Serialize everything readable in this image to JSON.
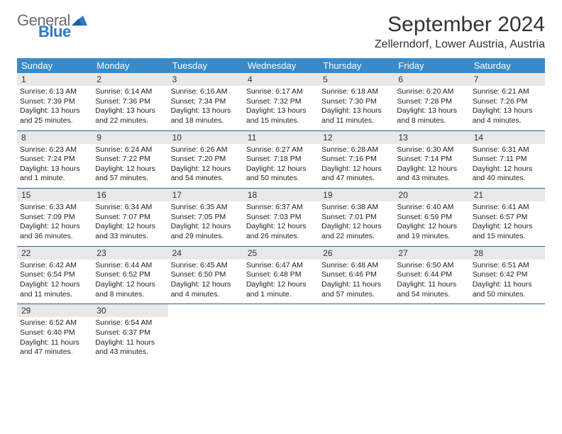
{
  "logo": {
    "text1": "General",
    "text2": "Blue"
  },
  "title": "September 2024",
  "location": "Zellerndorf, Lower Austria, Austria",
  "colors": {
    "header_bg": "#3a8ac8",
    "header_text": "#ffffff",
    "daynum_bg": "#e8e8e8",
    "week_border": "#2f5f8a",
    "logo_gray": "#6b6b6b",
    "logo_blue": "#2f78c2",
    "page_bg": "#ffffff",
    "text": "#222222"
  },
  "weekdays": [
    "Sunday",
    "Monday",
    "Tuesday",
    "Wednesday",
    "Thursday",
    "Friday",
    "Saturday"
  ],
  "layout": {
    "columns": 7,
    "rows": 5
  },
  "days": [
    {
      "n": "1",
      "sunrise": "Sunrise: 6:13 AM",
      "sunset": "Sunset: 7:39 PM",
      "day1": "Daylight: 13 hours",
      "day2": "and 25 minutes."
    },
    {
      "n": "2",
      "sunrise": "Sunrise: 6:14 AM",
      "sunset": "Sunset: 7:36 PM",
      "day1": "Daylight: 13 hours",
      "day2": "and 22 minutes."
    },
    {
      "n": "3",
      "sunrise": "Sunrise: 6:16 AM",
      "sunset": "Sunset: 7:34 PM",
      "day1": "Daylight: 13 hours",
      "day2": "and 18 minutes."
    },
    {
      "n": "4",
      "sunrise": "Sunrise: 6:17 AM",
      "sunset": "Sunset: 7:32 PM",
      "day1": "Daylight: 13 hours",
      "day2": "and 15 minutes."
    },
    {
      "n": "5",
      "sunrise": "Sunrise: 6:18 AM",
      "sunset": "Sunset: 7:30 PM",
      "day1": "Daylight: 13 hours",
      "day2": "and 11 minutes."
    },
    {
      "n": "6",
      "sunrise": "Sunrise: 6:20 AM",
      "sunset": "Sunset: 7:28 PM",
      "day1": "Daylight: 13 hours",
      "day2": "and 8 minutes."
    },
    {
      "n": "7",
      "sunrise": "Sunrise: 6:21 AM",
      "sunset": "Sunset: 7:26 PM",
      "day1": "Daylight: 13 hours",
      "day2": "and 4 minutes."
    },
    {
      "n": "8",
      "sunrise": "Sunrise: 6:23 AM",
      "sunset": "Sunset: 7:24 PM",
      "day1": "Daylight: 13 hours",
      "day2": "and 1 minute."
    },
    {
      "n": "9",
      "sunrise": "Sunrise: 6:24 AM",
      "sunset": "Sunset: 7:22 PM",
      "day1": "Daylight: 12 hours",
      "day2": "and 57 minutes."
    },
    {
      "n": "10",
      "sunrise": "Sunrise: 6:26 AM",
      "sunset": "Sunset: 7:20 PM",
      "day1": "Daylight: 12 hours",
      "day2": "and 54 minutes."
    },
    {
      "n": "11",
      "sunrise": "Sunrise: 6:27 AM",
      "sunset": "Sunset: 7:18 PM",
      "day1": "Daylight: 12 hours",
      "day2": "and 50 minutes."
    },
    {
      "n": "12",
      "sunrise": "Sunrise: 6:28 AM",
      "sunset": "Sunset: 7:16 PM",
      "day1": "Daylight: 12 hours",
      "day2": "and 47 minutes."
    },
    {
      "n": "13",
      "sunrise": "Sunrise: 6:30 AM",
      "sunset": "Sunset: 7:14 PM",
      "day1": "Daylight: 12 hours",
      "day2": "and 43 minutes."
    },
    {
      "n": "14",
      "sunrise": "Sunrise: 6:31 AM",
      "sunset": "Sunset: 7:11 PM",
      "day1": "Daylight: 12 hours",
      "day2": "and 40 minutes."
    },
    {
      "n": "15",
      "sunrise": "Sunrise: 6:33 AM",
      "sunset": "Sunset: 7:09 PM",
      "day1": "Daylight: 12 hours",
      "day2": "and 36 minutes."
    },
    {
      "n": "16",
      "sunrise": "Sunrise: 6:34 AM",
      "sunset": "Sunset: 7:07 PM",
      "day1": "Daylight: 12 hours",
      "day2": "and 33 minutes."
    },
    {
      "n": "17",
      "sunrise": "Sunrise: 6:35 AM",
      "sunset": "Sunset: 7:05 PM",
      "day1": "Daylight: 12 hours",
      "day2": "and 29 minutes."
    },
    {
      "n": "18",
      "sunrise": "Sunrise: 6:37 AM",
      "sunset": "Sunset: 7:03 PM",
      "day1": "Daylight: 12 hours",
      "day2": "and 26 minutes."
    },
    {
      "n": "19",
      "sunrise": "Sunrise: 6:38 AM",
      "sunset": "Sunset: 7:01 PM",
      "day1": "Daylight: 12 hours",
      "day2": "and 22 minutes."
    },
    {
      "n": "20",
      "sunrise": "Sunrise: 6:40 AM",
      "sunset": "Sunset: 6:59 PM",
      "day1": "Daylight: 12 hours",
      "day2": "and 19 minutes."
    },
    {
      "n": "21",
      "sunrise": "Sunrise: 6:41 AM",
      "sunset": "Sunset: 6:57 PM",
      "day1": "Daylight: 12 hours",
      "day2": "and 15 minutes."
    },
    {
      "n": "22",
      "sunrise": "Sunrise: 6:42 AM",
      "sunset": "Sunset: 6:54 PM",
      "day1": "Daylight: 12 hours",
      "day2": "and 11 minutes."
    },
    {
      "n": "23",
      "sunrise": "Sunrise: 6:44 AM",
      "sunset": "Sunset: 6:52 PM",
      "day1": "Daylight: 12 hours",
      "day2": "and 8 minutes."
    },
    {
      "n": "24",
      "sunrise": "Sunrise: 6:45 AM",
      "sunset": "Sunset: 6:50 PM",
      "day1": "Daylight: 12 hours",
      "day2": "and 4 minutes."
    },
    {
      "n": "25",
      "sunrise": "Sunrise: 6:47 AM",
      "sunset": "Sunset: 6:48 PM",
      "day1": "Daylight: 12 hours",
      "day2": "and 1 minute."
    },
    {
      "n": "26",
      "sunrise": "Sunrise: 6:48 AM",
      "sunset": "Sunset: 6:46 PM",
      "day1": "Daylight: 11 hours",
      "day2": "and 57 minutes."
    },
    {
      "n": "27",
      "sunrise": "Sunrise: 6:50 AM",
      "sunset": "Sunset: 6:44 PM",
      "day1": "Daylight: 11 hours",
      "day2": "and 54 minutes."
    },
    {
      "n": "28",
      "sunrise": "Sunrise: 6:51 AM",
      "sunset": "Sunset: 6:42 PM",
      "day1": "Daylight: 11 hours",
      "day2": "and 50 minutes."
    },
    {
      "n": "29",
      "sunrise": "Sunrise: 6:52 AM",
      "sunset": "Sunset: 6:40 PM",
      "day1": "Daylight: 11 hours",
      "day2": "and 47 minutes."
    },
    {
      "n": "30",
      "sunrise": "Sunrise: 6:54 AM",
      "sunset": "Sunset: 6:37 PM",
      "day1": "Daylight: 11 hours",
      "day2": "and 43 minutes."
    }
  ]
}
